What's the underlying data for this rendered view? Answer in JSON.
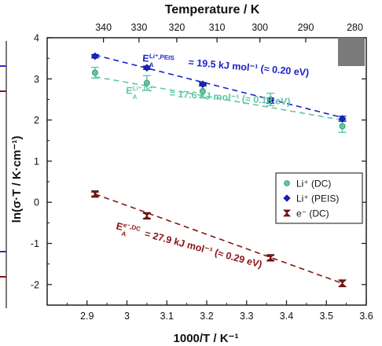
{
  "chart_data": {
    "type": "scatter",
    "xlabel": "1000/T / K⁻¹",
    "ylabel": "ln(σ·T / K·cm⁻¹)",
    "top_xlabel": "Temperature / K",
    "xlim": [
      2.8,
      3.6
    ],
    "ylim": [
      -2.5,
      4
    ],
    "x_ticks": [
      "2.9",
      "3",
      "3.1",
      "3.2",
      "3.3",
      "3.4",
      "3.5",
      "3.6"
    ],
    "y_ticks": [
      "-2",
      "-1",
      "0",
      "1",
      "2",
      "3",
      "4"
    ],
    "top_ticks": [
      "340",
      "330",
      "320",
      "310",
      "300",
      "290",
      "280"
    ],
    "legend_position": "right",
    "series": [
      {
        "name": "Li⁺ (DC)",
        "color": "#5fc8a0",
        "marker": "circle",
        "x": [
          2.92,
          3.05,
          3.19,
          3.36,
          3.54
        ],
        "y": [
          3.15,
          2.9,
          2.7,
          2.5,
          1.85
        ],
        "yerr": [
          0.13,
          0.18,
          0.15,
          0.15,
          0.15
        ],
        "fit_line": [
          [
            2.92,
            3.05
          ],
          [
            3.54,
            2.0
          ]
        ],
        "annotation": {
          "prefix": "E",
          "sup": "Li⁺,DC",
          "sub": "A",
          "text": " = 17.6 kJ mol⁻¹ (≈ 0.18 eV)"
        }
      },
      {
        "name": "Li⁺ (PEIS)",
        "color": "#1a22c8",
        "marker": "diamond",
        "x": [
          2.92,
          3.05,
          3.19,
          3.36,
          3.54
        ],
        "y": [
          3.55,
          3.27,
          2.87,
          2.47,
          2.03
        ],
        "yerr": [
          0.04,
          0.04,
          0.04,
          0.06,
          0.06
        ],
        "fit_line": [
          [
            2.92,
            3.58
          ],
          [
            3.54,
            2.06
          ]
        ],
        "annotation": {
          "prefix": "E",
          "sup": "Li⁺,PEIS",
          "sub": "A",
          "text": " = 19.5 kJ mol⁻¹ (≈ 0.20 eV)"
        }
      },
      {
        "name": "e⁻ (DC)",
        "color": "#8b1414",
        "marker": "bowtie",
        "x": [
          2.92,
          3.05,
          3.36,
          3.54
        ],
        "y": [
          0.2,
          -0.33,
          -1.35,
          -1.97
        ],
        "yerr": [
          0.05,
          0.06,
          0.06,
          0.08
        ],
        "fit_line": [
          [
            2.92,
            0.2
          ],
          [
            3.54,
            -1.97
          ]
        ],
        "annotation": {
          "prefix": "E",
          "sup": "e⁻,DC",
          "sub": "A",
          "text": " = 27.9 kJ mol⁻¹ (≈ 0.29 eV)"
        }
      }
    ]
  }
}
